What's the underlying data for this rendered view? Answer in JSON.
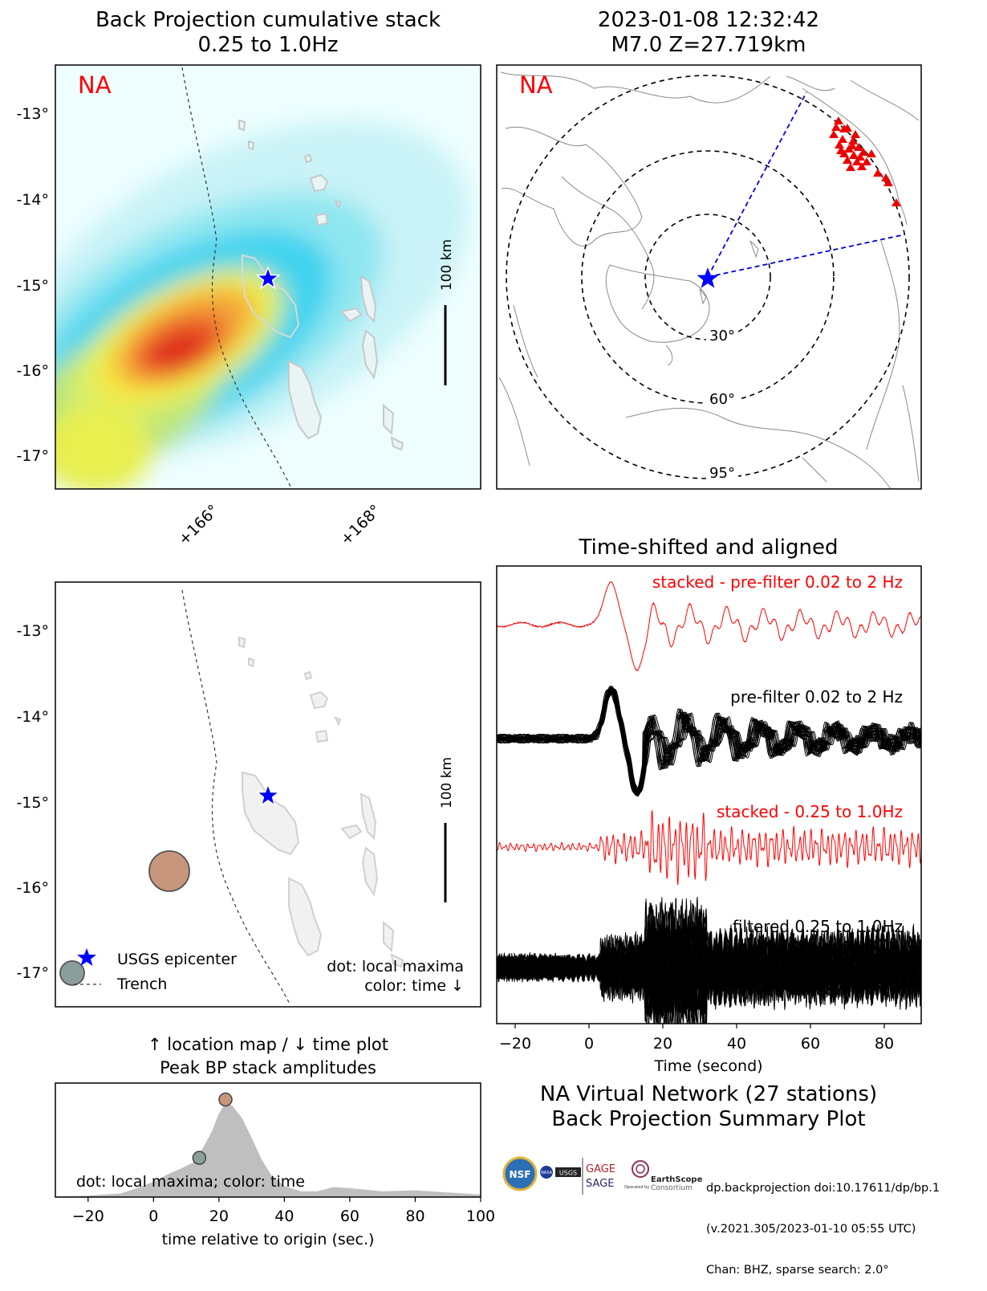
{
  "panel_bp": {
    "title": "Back Projection cumulative stack",
    "subtitle": "0.25 to 1.0Hz",
    "network_label": "NA",
    "yticks": [
      "-13°",
      "-14°",
      "-15°",
      "-16°",
      "-17°"
    ],
    "xticks": [
      "+166°",
      "+168°"
    ],
    "scalebar_label": "100 km"
  },
  "panel_globe": {
    "title": "2023-01-08 12:32:42",
    "subtitle": "M7.0 Z=27.719km",
    "network_label": "NA",
    "ring_labels": [
      "30°",
      "60°",
      "95°"
    ]
  },
  "panel_maxima": {
    "yticks": [
      "-13°",
      "-14°",
      "-15°",
      "-16°",
      "-17°"
    ],
    "scalebar_label": "100 km",
    "legend_epicenter": "USGS epicenter",
    "legend_trench": "Trench",
    "note_line1": "dot: local maxima",
    "note_line2": "color: time ↓"
  },
  "panel_time": {
    "title_line1": "↑ location map / ↓ time plot",
    "title_line2": "Peak BP stack amplitudes",
    "note": "dot: local maxima; color: time",
    "xlabel": "time relative to origin (sec.)",
    "xticks": [
      "−20",
      "0",
      "20",
      "40",
      "60",
      "80",
      "100"
    ]
  },
  "panel_traces": {
    "title": "Time-shifted and aligned",
    "label1": "stacked - pre-filter 0.02 to 2 Hz",
    "label2": "pre-filter 0.02 to 2 Hz",
    "label3": "stacked - 0.25 to 1.0Hz",
    "label4": "filtered 0.25 to 1.0Hz",
    "xlabel": "Time (second)",
    "xticks": [
      "−20",
      "0",
      "20",
      "40",
      "60",
      "80"
    ]
  },
  "summary": {
    "line1": "NA Virtual Network (27 stations)",
    "line2": "Back Projection Summary Plot"
  },
  "credit": {
    "line1": "dp.backprojection doi:10.17611/dp/bp.1",
    "line2": "(v.2021.305/2023-01-10 05:55 UTC)",
    "line3": "Chan: BHZ, sparse search: 2.0°"
  },
  "logos": {
    "nsf": "NSF",
    "nasa": "NASA",
    "usgs": "USGS",
    "gage": "GAGE",
    "sage": "SAGE",
    "earthscope": "EarthScope",
    "earthscope_sub": "Consortium",
    "operated_by": "Operated by"
  },
  "colors": {
    "epicenter": "#0000ff",
    "stations": "#ff0000",
    "stacked_trace": "#ff0000",
    "trace": "#000000",
    "maxima_early": "#8a9e9a",
    "maxima_late": "#c8967a",
    "amplitude_fill": "#bfbfbf"
  },
  "chart_data": [
    {
      "type": "heatmap",
      "title": "Back Projection cumulative stack",
      "subtitle": "0.25 to 1.0Hz",
      "xticks": [
        "+166°",
        "+168°"
      ],
      "yticks": [
        "-13°",
        "-14°",
        "-15°",
        "-16°",
        "-17°"
      ],
      "peak_location": {
        "lon": 165.7,
        "lat": -15.85
      },
      "epicenter": {
        "lon": 166.7,
        "lat": -14.95
      },
      "scale_km": 100
    },
    {
      "type": "scatter",
      "title": "2023-01-08 12:32:42",
      "subtitle": "M7.0 Z=27.719km",
      "ring_distances_deg": [
        30,
        60,
        95
      ],
      "station_count": 27
    },
    {
      "type": "scatter",
      "note": "dot: local maxima / color: time ↓",
      "points": [
        {
          "lon": 165.55,
          "lat": -15.85,
          "time_s": 22,
          "size": "large"
        },
        {
          "lon": 164.5,
          "lat": -17.05,
          "time_s": 14,
          "size": "small"
        }
      ]
    },
    {
      "type": "area",
      "title": "Peak BP stack amplitudes",
      "xlabel": "time relative to origin (sec.)",
      "xlim": [
        -30,
        100
      ],
      "x": [
        -30,
        -20,
        -10,
        -5,
        0,
        5,
        8,
        12,
        15,
        18,
        20,
        22,
        24,
        27,
        30,
        33,
        36,
        40,
        45,
        50,
        55,
        60,
        70,
        80,
        90,
        100
      ],
      "y": [
        0.0,
        0.01,
        0.03,
        0.08,
        0.14,
        0.22,
        0.26,
        0.32,
        0.45,
        0.62,
        0.78,
        0.88,
        0.86,
        0.74,
        0.55,
        0.35,
        0.2,
        0.1,
        0.05,
        0.05,
        0.09,
        0.08,
        0.05,
        0.06,
        0.04,
        0.02
      ],
      "maxima": [
        {
          "x": 14,
          "y": 0.37
        },
        {
          "x": 22,
          "y": 0.92
        }
      ]
    },
    {
      "type": "line",
      "title": "Time-shifted and aligned",
      "xlabel": "Time (second)",
      "xlim": [
        -25,
        90
      ],
      "series": [
        {
          "name": "stacked - pre-filter 0.02 to 2 Hz"
        },
        {
          "name": "pre-filter 0.02 to 2 Hz"
        },
        {
          "name": "stacked - 0.25 to 1.0Hz"
        },
        {
          "name": "filtered 0.25 to 1.0Hz"
        }
      ]
    }
  ]
}
